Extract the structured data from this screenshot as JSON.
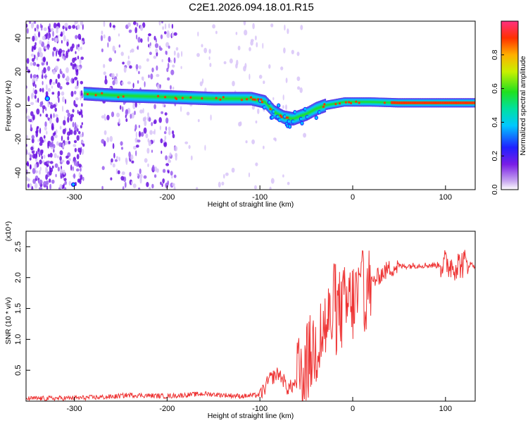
{
  "figure_title": "C2E1.2026.094.18.01.R15",
  "chart_data": [
    {
      "type": "heatmap",
      "title": "C2E1.2026.094.18.01.R15",
      "xlabel": "Height of straight line (km)",
      "ylabel": "Frequency (Hz)",
      "xlim": [
        -352,
        132
      ],
      "ylim": [
        -50,
        50
      ],
      "xticks": [
        -300,
        -200,
        -100,
        0,
        100
      ],
      "yticks": [
        -40,
        -20,
        0,
        20,
        40
      ],
      "colorbar": {
        "label": "Normalized spectral amplitude",
        "range": [
          0,
          1
        ],
        "ticks": [
          "0.0",
          "0.2",
          "0.4",
          "0.6",
          "0.8"
        ]
      },
      "ridge": {
        "x": [
          -290,
          -260,
          -200,
          -150,
          -110,
          -95,
          -85,
          -75,
          -65,
          -55,
          -50,
          -40,
          -30,
          -20,
          -10,
          0,
          20,
          50,
          80,
          110,
          132
        ],
        "y": [
          7,
          6,
          5,
          4,
          4,
          2,
          -4,
          -7,
          -8,
          -6,
          -5,
          -2,
          0,
          1,
          2,
          2,
          2,
          1.5,
          1.5,
          1.5,
          1.5
        ]
      },
      "noise_region_x": [
        -352,
        -190
      ]
    },
    {
      "type": "line",
      "xlabel": "Height of straight line (km)",
      "ylabel": "SNR (10 * v/v)",
      "y_scale_label": "(x10⁴)",
      "y_units_multiplier": 10000,
      "xlim": [
        -352,
        132
      ],
      "ylim": [
        0,
        2.75
      ],
      "xticks": [
        -300,
        -200,
        -100,
        0,
        100
      ],
      "yticks": [
        "0.5",
        "1.0",
        "1.5",
        "2.0",
        "2.5"
      ],
      "color": "#ee3333",
      "series": [
        {
          "x": [
            -352,
            -300,
            -260,
            -240,
            -200,
            -160,
            -140,
            -120,
            -100,
            -95,
            -90,
            -85,
            -80,
            -75,
            -70,
            -60,
            -50,
            -40,
            -30,
            -20,
            -10,
            0,
            10,
            20,
            30,
            40,
            50,
            70,
            90,
            100,
            110,
            120,
            132
          ],
          "y": [
            0.04,
            0.05,
            0.07,
            0.1,
            0.08,
            0.12,
            0.1,
            0.08,
            0.1,
            0.2,
            0.35,
            0.4,
            0.45,
            0.35,
            0.2,
            0.3,
            0.6,
            0.9,
            1.2,
            1.4,
            1.5,
            1.6,
            1.75,
            1.9,
            2.05,
            2.15,
            2.18,
            2.2,
            2.2,
            2.22,
            2.2,
            2.23,
            2.2
          ]
        }
      ]
    }
  ]
}
